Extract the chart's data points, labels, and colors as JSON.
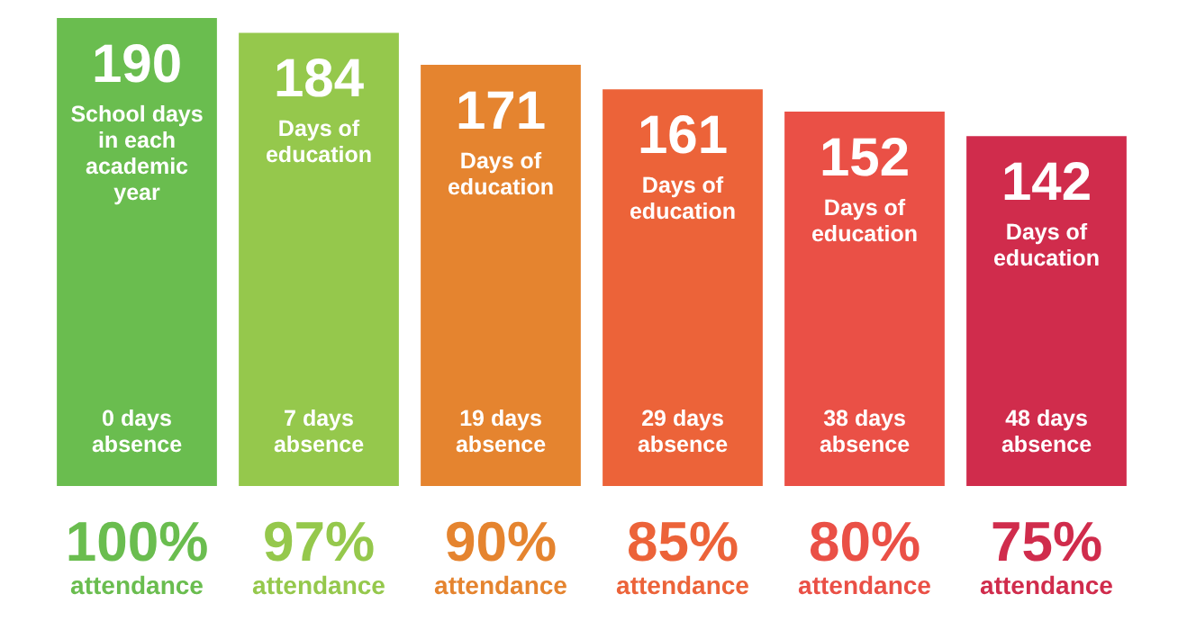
{
  "chart_data": {
    "type": "bar",
    "categories": [
      "100% attendance",
      "97% attendance",
      "90% attendance",
      "85% attendance",
      "80% attendance",
      "75% attendance"
    ],
    "values": [
      190,
      184,
      171,
      161,
      152,
      142
    ],
    "colors": [
      "#6abd4f",
      "#95c84c",
      "#e5842f",
      "#ec6339",
      "#ea5046",
      "#d02c4c"
    ],
    "data_labels": true,
    "legend": false,
    "grid": false,
    "tick_labels": "x",
    "annotations": [
      "School days in each academic year",
      "Days of education",
      "Days of education",
      "Days of education",
      "Days of education",
      "Days of education",
      "0 days absence",
      "7 days absence",
      "19 days absence",
      "29 days absence",
      "38 days absence",
      "48 days absence"
    ]
  }
}
